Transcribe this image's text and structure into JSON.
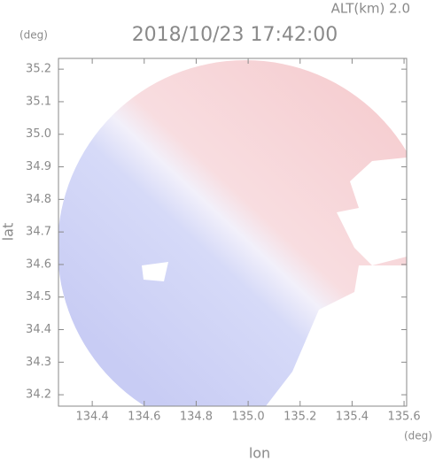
{
  "chart_data": {
    "type": "radar-map",
    "title": "2018/10/23 17:42:00",
    "subtitle": "ALT(km) 2.0",
    "x_label": "lon",
    "y_label": "lat",
    "x_unit": "(deg)",
    "y_unit": "(deg)",
    "xlim": [
      134.27,
      135.61
    ],
    "ylim": [
      34.165,
      35.233
    ],
    "xticks": [
      134.4,
      134.6,
      134.8,
      {
        "value": 135,
        "label": "135.0"
      },
      135.2,
      135.4,
      135.6
    ],
    "yticks": [
      34.2,
      34.3,
      34.4,
      34.5,
      34.6,
      34.7,
      34.8,
      34.9,
      {
        "value": 35,
        "label": "35.0"
      },
      35.1,
      35.2
    ]
  }
}
